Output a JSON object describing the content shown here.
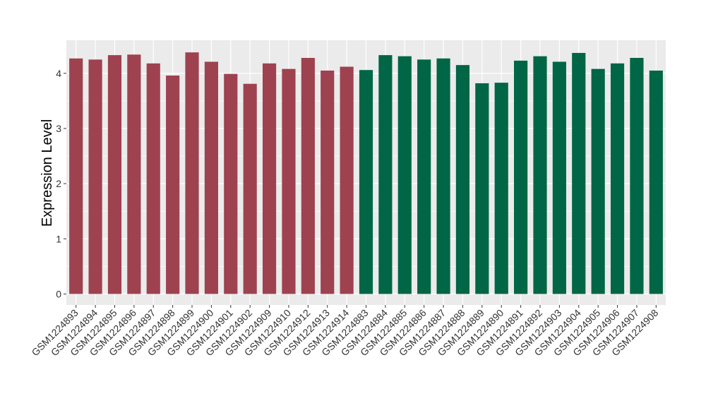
{
  "chart_data": {
    "type": "bar",
    "title": "",
    "xlabel": "",
    "ylabel": "Expression Level",
    "ylim": [
      -0.2,
      4.6
    ],
    "yticks": [
      0,
      1,
      2,
      3,
      4
    ],
    "grid": true,
    "background": "#ebebeb",
    "categories": [
      "GSM1224893",
      "GSM1224894",
      "GSM1224895",
      "GSM1224896",
      "GSM1224897",
      "GSM1224898",
      "GSM1224899",
      "GSM1224900",
      "GSM1224901",
      "GSM1224902",
      "GSM1224909",
      "GSM1224910",
      "GSM1224912",
      "GSM1224913",
      "GSM1224914",
      "GSM1224883",
      "GSM1224884",
      "GSM1224885",
      "GSM1224886",
      "GSM1224887",
      "GSM1224888",
      "GSM1224889",
      "GSM1224890",
      "GSM1224891",
      "GSM1224892",
      "GSM1224903",
      "GSM1224904",
      "GSM1224905",
      "GSM1224906",
      "GSM1224907",
      "GSM1224908"
    ],
    "values": [
      4.27,
      4.25,
      4.33,
      4.34,
      4.18,
      3.96,
      4.38,
      4.21,
      3.99,
      3.81,
      4.18,
      4.08,
      4.28,
      4.05,
      4.12,
      4.06,
      4.33,
      4.31,
      4.25,
      4.27,
      4.15,
      3.82,
      3.83,
      4.23,
      4.31,
      4.21,
      4.37,
      4.08,
      4.18,
      4.28,
      4.05
    ],
    "group_sizes": [
      15,
      16
    ],
    "colors": [
      "#9e4250",
      "#006645"
    ]
  }
}
